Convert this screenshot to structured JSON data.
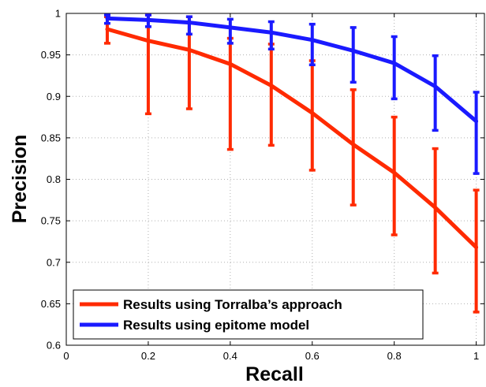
{
  "chart_data": {
    "type": "line",
    "xlabel": "Recall",
    "ylabel": "Precision",
    "xlim": [
      0,
      1.02
    ],
    "ylim": [
      0.6,
      1
    ],
    "xticks": [
      0,
      0.2,
      0.4,
      0.6,
      0.8,
      1
    ],
    "xtick_labels": [
      "0",
      "0.2",
      "0.4",
      "0.6",
      "0.8",
      "1"
    ],
    "yticks": [
      0.6,
      0.65,
      0.7,
      0.75,
      0.8,
      0.85,
      0.9,
      0.95,
      1
    ],
    "ytick_labels": [
      "0.6",
      "0.65",
      "0.7",
      "0.75",
      "0.8",
      "0.85",
      "0.9",
      "0.95",
      "1"
    ],
    "grid": true,
    "legend_position": "bottom-left",
    "x": [
      0.1,
      0.2,
      0.3,
      0.4,
      0.5,
      0.6,
      0.7,
      0.8,
      0.9,
      1.0
    ],
    "series": [
      {
        "name": "Results using Torralba’s approach",
        "color": "#ff2a00",
        "values": [
          0.981,
          0.967,
          0.956,
          0.939,
          0.913,
          0.88,
          0.842,
          0.808,
          0.766,
          0.718
        ],
        "err_low": [
          0.964,
          0.879,
          0.885,
          0.836,
          0.841,
          0.811,
          0.769,
          0.733,
          0.687,
          0.64
        ],
        "err_high": [
          0.996,
          0.998,
          0.996,
          0.97,
          0.963,
          0.943,
          0.908,
          0.875,
          0.837,
          0.787
        ]
      },
      {
        "name": "Results using epitome model",
        "color": "#1a1aff",
        "values": [
          0.994,
          0.992,
          0.989,
          0.983,
          0.977,
          0.968,
          0.955,
          0.94,
          0.912,
          0.87
        ],
        "err_low": [
          0.988,
          0.984,
          0.975,
          0.964,
          0.957,
          0.938,
          0.917,
          0.897,
          0.859,
          0.807
        ],
        "err_high": [
          0.998,
          0.998,
          0.996,
          0.993,
          0.99,
          0.987,
          0.983,
          0.972,
          0.949,
          0.905
        ]
      }
    ]
  }
}
